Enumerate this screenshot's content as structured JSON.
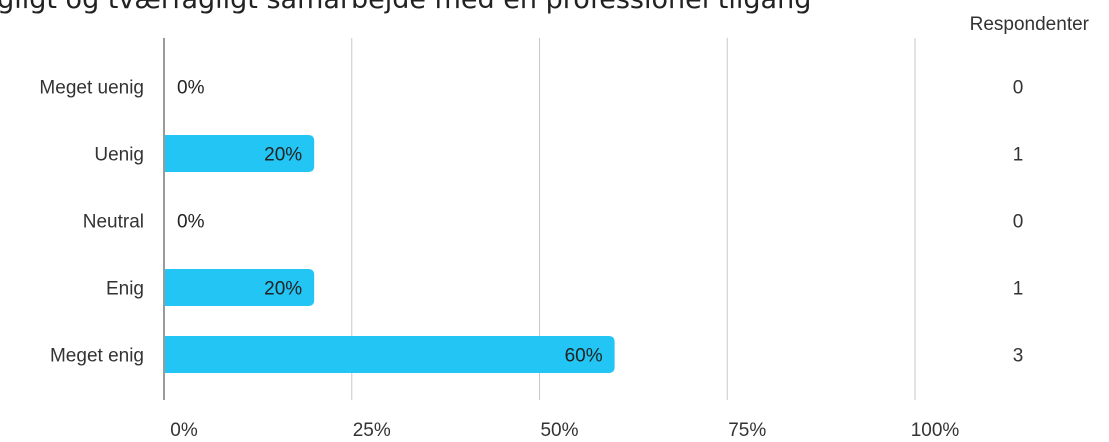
{
  "chart_data": {
    "type": "bar",
    "orientation": "horizontal",
    "title": "ugligt og tværfagligt samarbejde med en professionel tilgang",
    "categories": [
      "Meget uenig",
      "Uenig",
      "Neutral",
      "Enig",
      "Meget enig"
    ],
    "values": [
      0,
      20,
      0,
      20,
      60
    ],
    "value_labels": [
      "0%",
      "20%",
      "0%",
      "20%",
      "60%"
    ],
    "respondents_header": "Respondenter",
    "respondents": [
      "0",
      "1",
      "0",
      "1",
      "3"
    ],
    "x_ticks": [
      0,
      25,
      50,
      75,
      100
    ],
    "x_tick_labels": [
      "0%",
      "25%",
      "50%",
      "75%",
      "100%"
    ],
    "xlim": [
      0,
      100
    ],
    "grid": true,
    "bar_color": "#22c5f3"
  }
}
